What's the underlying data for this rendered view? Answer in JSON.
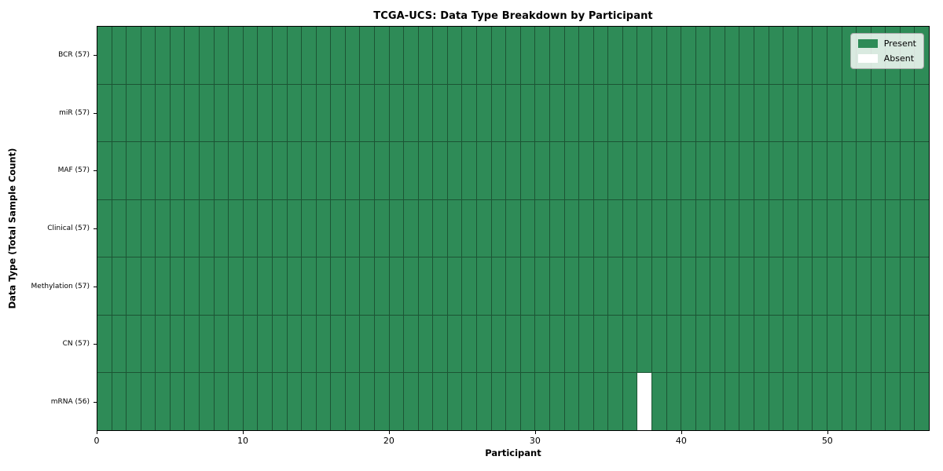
{
  "title": "TCGA-UCS: Data Type Breakdown by Participant",
  "chart_data": {
    "type": "heatmap",
    "title": "TCGA-UCS: Data Type Breakdown by Participant",
    "xlabel": "Participant",
    "ylabel": "Data Type (Total Sample Count)",
    "x_range": [
      0,
      57
    ],
    "x_ticks": [
      0,
      10,
      20,
      30,
      40,
      50
    ],
    "n_participants": 57,
    "rows": [
      {
        "data_type": "BCR",
        "label": "BCR (57)",
        "total": 57,
        "absent_participants": []
      },
      {
        "data_type": "miR",
        "label": "miR (57)",
        "total": 57,
        "absent_participants": []
      },
      {
        "data_type": "MAF",
        "label": "MAF (57)",
        "total": 57,
        "absent_participants": []
      },
      {
        "data_type": "Clinical",
        "label": "Clinical (57)",
        "total": 57,
        "absent_participants": []
      },
      {
        "data_type": "Methylation",
        "label": "Methylation (57)",
        "total": 57,
        "absent_participants": []
      },
      {
        "data_type": "CN",
        "label": "CN (57)",
        "total": 57,
        "absent_participants": []
      },
      {
        "data_type": "mRNA",
        "label": "mRNA (56)",
        "total": 56,
        "absent_participants": [
          37
        ]
      }
    ],
    "legend": {
      "position": "upper-right",
      "entries": [
        {
          "label": "Present",
          "color": "#2e8b57"
        },
        {
          "label": "Absent",
          "color": "#ffffff"
        }
      ]
    },
    "colors": {
      "present": "#2e8b57",
      "absent": "#ffffff",
      "gridline": "#1c5434",
      "border": "#000000",
      "background": "#ffffff"
    },
    "grid": true
  }
}
